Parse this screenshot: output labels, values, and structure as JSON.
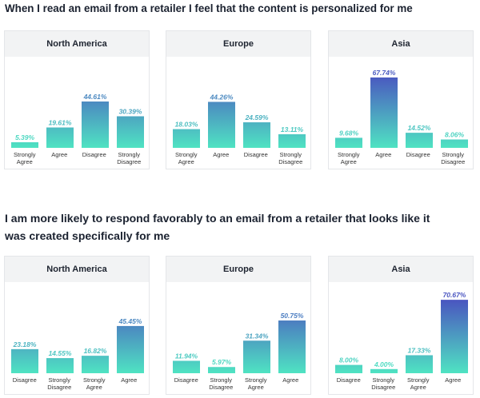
{
  "headings": [
    "When I read an email from a retailer I feel that the content is personalized for me",
    "I am more likely to respond favorably to an email from a retailer that looks like it was created specifically for me"
  ],
  "chart_data": [
    {
      "type": "bar",
      "title": "North America",
      "categories": [
        "Strongly Agree",
        "Agree",
        "Disagree",
        "Strongly Disagree"
      ],
      "values": [
        5.39,
        19.61,
        44.61,
        30.39
      ],
      "value_labels": [
        "5.39%",
        "19.61%",
        "44.61%",
        "30.39%"
      ],
      "gradient": [
        "#4fe3c2",
        "#4a55c0"
      ]
    },
    {
      "type": "bar",
      "title": "Europe",
      "categories": [
        "Strongly Agree",
        "Agree",
        "Disagree",
        "Strongly Disagree"
      ],
      "values": [
        18.03,
        44.26,
        24.59,
        13.11
      ],
      "value_labels": [
        "18.03%",
        "44.26%",
        "24.59%",
        "13.11%"
      ],
      "gradient": [
        "#4fe3c2",
        "#4a55c0"
      ]
    },
    {
      "type": "bar",
      "title": "Asia",
      "categories": [
        "Strongly Agree",
        "Agree",
        "Disagree",
        "Strongly Disagree"
      ],
      "values": [
        9.68,
        67.74,
        14.52,
        8.06
      ],
      "value_labels": [
        "9.68%",
        "67.74%",
        "14.52%",
        "8.06%"
      ],
      "gradient": [
        "#4fe3c2",
        "#4a55c0"
      ]
    },
    {
      "type": "bar",
      "title": "North America",
      "categories": [
        "Disagree",
        "Strongly Disagree",
        "Strongly Agree",
        "Agree"
      ],
      "values": [
        23.18,
        14.55,
        16.82,
        45.45
      ],
      "value_labels": [
        "23.18%",
        "14.55%",
        "16.82%",
        "45.45%"
      ],
      "gradient": [
        "#4fe3c2",
        "#4a55c0"
      ]
    },
    {
      "type": "bar",
      "title": "Europe",
      "categories": [
        "Disagree",
        "Strongly Disagree",
        "Strongly Agree",
        "Agree"
      ],
      "values": [
        11.94,
        5.97,
        31.34,
        50.75
      ],
      "value_labels": [
        "11.94%",
        "5.97%",
        "31.34%",
        "50.75%"
      ],
      "gradient": [
        "#4fe3c2",
        "#4a55c0"
      ]
    },
    {
      "type": "bar",
      "title": "Asia",
      "categories": [
        "Disagree",
        "Strongly Disagree",
        "Strongly Agree",
        "Agree"
      ],
      "values": [
        8,
        4,
        17.33,
        70.67
      ],
      "value_labels": [
        "8.00%",
        "4.00%",
        "17.33%",
        "70.67%"
      ],
      "gradient": [
        "#4fe3c2",
        "#4a55c0"
      ]
    }
  ]
}
